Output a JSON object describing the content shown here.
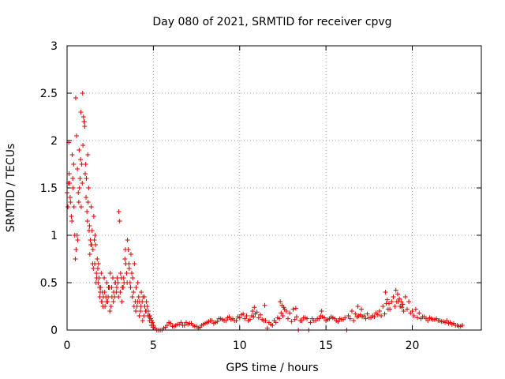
{
  "chart_data": {
    "type": "scatter",
    "title": "Day 080 of 2021, SRMTID for receiver cpvg",
    "xlabel": "GPS time / hours",
    "ylabel": "SRMTID / TECUs",
    "xlim": [
      0,
      24
    ],
    "ylim": [
      0,
      3
    ],
    "xticks": [
      0,
      5,
      10,
      15,
      20
    ],
    "xtick_labels": [
      "0",
      "5",
      "10",
      "15",
      "20"
    ],
    "yticks": [
      0,
      0.5,
      1,
      1.5,
      2,
      2.5,
      3
    ],
    "ytick_labels": [
      "0",
      "0.5",
      "1",
      "1.5",
      "2",
      "2.5",
      "3"
    ],
    "grid": true,
    "marker": "+",
    "series": [
      {
        "name": "SRMTID",
        "color": "#e00000",
        "x": [
          0.0,
          0.1,
          0.15,
          0.2,
          0.3,
          0.35,
          0.4,
          0.5,
          0.55,
          0.6,
          0.65,
          0.7,
          0.75,
          0.8,
          0.85,
          0.9,
          0.95,
          1.0,
          1.05,
          1.1,
          1.15,
          1.2,
          1.25,
          1.3,
          1.35,
          1.4,
          1.45,
          1.5,
          1.55,
          1.6,
          1.65,
          1.7,
          1.75,
          1.8,
          1.85,
          1.9,
          1.95,
          2.0,
          2.05,
          2.1,
          2.2,
          2.3,
          2.4,
          2.5,
          2.6,
          2.7,
          2.8,
          2.9,
          3.0,
          3.1,
          3.2,
          3.3,
          3.4,
          3.5,
          3.6,
          3.7,
          3.8,
          3.9,
          4.0,
          4.1,
          4.2,
          4.3,
          4.4,
          4.5,
          4.6,
          4.7,
          4.8,
          4.9,
          5.0,
          5.1,
          5.3,
          5.5,
          5.7,
          5.9,
          6.1,
          6.3,
          6.5,
          6.7,
          6.9,
          7.1,
          7.3,
          7.5,
          7.7,
          7.9,
          8.1,
          8.3,
          8.5,
          8.7,
          8.9,
          9.1,
          9.3,
          9.5,
          9.7,
          9.9,
          10.1,
          10.3,
          10.5,
          10.7,
          10.9,
          11.1,
          11.3,
          11.5,
          11.7,
          11.9,
          12.1,
          12.3,
          12.5,
          12.7,
          12.9,
          13.1,
          13.3,
          13.5,
          13.7,
          13.9,
          14.1,
          14.3,
          14.5,
          14.7,
          14.9,
          15.1,
          15.3,
          15.5,
          15.7,
          15.9,
          16.1,
          16.3,
          16.5,
          16.7,
          16.9,
          17.1,
          17.3,
          17.5,
          17.7,
          17.9,
          18.1,
          18.3,
          18.5,
          18.7,
          18.9,
          19.1,
          19.3,
          19.5,
          19.7,
          19.9,
          20.1,
          20.3,
          20.5,
          20.7,
          20.9,
          21.1,
          21.3,
          21.5,
          21.7,
          21.9,
          22.1,
          22.3,
          22.5,
          22.7,
          22.9,
          0.05,
          0.12,
          0.25,
          0.33,
          0.45,
          0.52,
          0.62,
          0.72,
          0.82,
          0.92,
          1.02,
          1.12,
          1.22,
          1.32,
          1.42,
          1.52,
          1.62,
          1.72,
          1.82,
          1.92,
          2.02,
          2.15,
          2.25,
          2.35,
          2.45,
          2.55,
          2.65,
          2.75,
          2.85,
          2.95,
          3.05,
          3.15,
          3.25,
          3.35,
          3.45,
          3.55,
          3.65,
          3.75,
          3.85,
          3.95,
          4.05,
          4.15,
          4.25,
          4.35,
          4.45,
          4.55,
          4.65,
          4.75,
          4.85,
          4.95,
          5.2,
          5.4,
          5.6,
          5.8,
          6.0,
          6.2,
          6.4,
          6.6,
          6.8,
          7.0,
          7.2,
          7.4,
          7.6,
          7.8,
          8.0,
          8.2,
          8.4,
          8.6,
          8.8,
          9.0,
          9.2,
          9.4,
          9.6,
          9.8,
          10.0,
          10.2,
          10.4,
          10.6,
          10.8,
          11.0,
          11.2,
          11.4,
          11.6,
          11.8,
          12.0,
          12.2,
          12.4,
          12.6,
          12.8,
          13.0,
          13.2,
          13.4,
          13.6,
          13.8,
          14.0,
          14.2,
          14.4,
          14.6,
          14.8,
          15.0,
          15.2,
          15.4,
          15.6,
          15.8,
          16.0,
          16.2,
          16.4,
          16.6,
          16.8,
          17.0,
          17.2,
          17.4,
          17.6,
          17.8,
          18.0,
          18.2,
          18.4,
          18.6,
          18.8,
          19.0,
          19.2,
          19.4,
          19.6,
          19.8,
          20.0,
          20.2,
          20.4,
          20.6,
          20.8,
          21.0,
          21.2,
          21.4,
          21.6,
          21.8,
          22.0,
          22.2,
          22.4,
          22.6,
          22.8,
          0.08,
          0.18,
          0.28,
          0.38,
          0.48,
          0.58,
          0.68,
          0.78,
          0.88,
          0.98,
          1.08,
          1.18,
          1.28,
          1.38,
          1.48,
          1.58,
          1.68,
          1.78,
          1.88,
          1.98,
          2.08,
          2.18,
          2.28,
          2.38,
          2.48,
          2.58,
          2.68,
          2.78,
          2.88,
          2.98,
          3.08,
          3.18,
          3.28,
          3.38,
          3.48,
          3.58,
          3.68,
          3.78,
          3.88,
          3.98,
          4.08,
          4.18,
          4.28,
          4.38,
          4.48,
          4.58,
          4.68,
          4.78,
          4.88,
          4.98,
          18.45,
          18.55,
          18.65,
          19.05,
          19.15,
          19.25,
          19.35,
          19.45,
          12.35,
          12.45,
          12.55,
          10.75,
          10.85,
          11.45,
          13.25,
          14.75,
          16.85,
          17.05
        ],
        "y": [
          1.45,
          1.98,
          1.55,
          1.35,
          1.85,
          1.5,
          1.3,
          2.45,
          2.05,
          1.7,
          1.45,
          1.9,
          1.6,
          2.3,
          1.75,
          2.5,
          2.25,
          2.2,
          1.65,
          1.4,
          1.25,
          1.85,
          1.5,
          1.1,
          0.95,
          1.3,
          1.05,
          0.85,
          1.2,
          0.7,
          0.9,
          0.6,
          0.75,
          0.5,
          0.55,
          0.35,
          0.45,
          0.3,
          0.4,
          0.35,
          0.25,
          0.5,
          0.45,
          0.6,
          0.35,
          0.4,
          0.5,
          0.55,
          1.25,
          0.6,
          0.45,
          0.5,
          0.7,
          0.95,
          0.65,
          0.8,
          0.55,
          0.7,
          0.45,
          0.5,
          0.3,
          0.4,
          0.35,
          0.25,
          0.3,
          0.2,
          0.15,
          0.1,
          0.05,
          0.02,
          0.0,
          0.0,
          0.03,
          0.08,
          0.04,
          0.05,
          0.06,
          0.05,
          0.08,
          0.07,
          0.05,
          0.04,
          0.03,
          0.06,
          0.08,
          0.1,
          0.07,
          0.09,
          0.12,
          0.1,
          0.13,
          0.11,
          0.1,
          0.14,
          0.16,
          0.12,
          0.1,
          0.15,
          0.17,
          0.13,
          0.11,
          0.1,
          0.08,
          0.05,
          0.08,
          0.12,
          0.15,
          0.2,
          0.18,
          0.22,
          0.14,
          0.1,
          0.13,
          0.12,
          0.08,
          0.1,
          0.12,
          0.15,
          0.13,
          0.11,
          0.14,
          0.12,
          0.09,
          0.11,
          0.13,
          0.15,
          0.2,
          0.17,
          0.15,
          0.14,
          0.12,
          0.13,
          0.15,
          0.18,
          0.2,
          0.25,
          0.28,
          0.22,
          0.35,
          0.3,
          0.25,
          0.2,
          0.22,
          0.18,
          0.15,
          0.13,
          0.12,
          0.14,
          0.1,
          0.12,
          0.11,
          0.1,
          0.09,
          0.08,
          0.07,
          0.06,
          0.05,
          0.04,
          0.05,
          1.3,
          1.65,
          1.2,
          1.6,
          1.0,
          0.85,
          0.95,
          1.5,
          1.3,
          1.95,
          2.15,
          1.6,
          1.35,
          0.8,
          0.9,
          0.65,
          1.0,
          0.55,
          0.7,
          0.4,
          0.3,
          0.55,
          0.35,
          0.3,
          0.45,
          0.25,
          0.55,
          0.35,
          0.4,
          0.5,
          1.15,
          0.55,
          0.45,
          0.75,
          0.6,
          0.85,
          0.5,
          0.6,
          0.4,
          0.3,
          0.25,
          0.35,
          0.2,
          0.3,
          0.15,
          0.2,
          0.25,
          0.15,
          0.12,
          0.08,
          0.0,
          0.0,
          0.02,
          0.05,
          0.07,
          0.04,
          0.06,
          0.08,
          0.05,
          0.06,
          0.07,
          0.04,
          0.02,
          0.05,
          0.07,
          0.09,
          0.1,
          0.08,
          0.12,
          0.11,
          0.1,
          0.14,
          0.12,
          0.1,
          0.13,
          0.17,
          0.15,
          0.11,
          0.14,
          0.19,
          0.16,
          0.1,
          0.02,
          0.06,
          0.1,
          0.13,
          0.18,
          0.22,
          0.12,
          0.09,
          0.11,
          0.0,
          0.1,
          0.13,
          0.0,
          0.12,
          0.1,
          0.12,
          0.14,
          0.1,
          0.12,
          0.13,
          0.1,
          0.12,
          0.11,
          0.0,
          0.12,
          0.1,
          0.14,
          0.16,
          0.15,
          0.17,
          0.13,
          0.14,
          0.16,
          0.15,
          0.17,
          0.22,
          0.3,
          0.25,
          0.3,
          0.24,
          0.35,
          0.3,
          0.2,
          0.22,
          0.18,
          0.14,
          0.12,
          0.13,
          0.11,
          0.12,
          0.1,
          0.09,
          0.1,
          0.08,
          0.07,
          0.05,
          0.04,
          1.55,
          1.4,
          1.15,
          1.75,
          0.75,
          1.0,
          1.35,
          1.8,
          1.55,
          2.2,
          1.75,
          1.15,
          1.05,
          0.9,
          0.7,
          0.95,
          0.5,
          0.65,
          0.45,
          0.6,
          0.25,
          0.4,
          0.3,
          0.35,
          0.2,
          0.45,
          0.3,
          0.5,
          0.45,
          0.35,
          0.4,
          0.3,
          0.55,
          0.85,
          0.5,
          0.7,
          0.45,
          0.35,
          0.25,
          0.2,
          0.3,
          0.15,
          0.25,
          0.1,
          0.35,
          0.2,
          0.15,
          0.1,
          0.05,
          0.03,
          0.4,
          0.32,
          0.28,
          0.42,
          0.38,
          0.33,
          0.3,
          0.27,
          0.3,
          0.26,
          0.24,
          0.2,
          0.24,
          0.26,
          0.23,
          0.2,
          0.25,
          0.22
        ]
      }
    ]
  }
}
